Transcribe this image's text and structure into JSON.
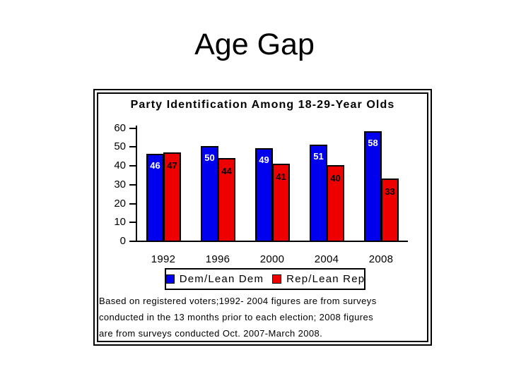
{
  "slide": {
    "title": "Age Gap"
  },
  "chart": {
    "footnote_lines": [
      "Based on registered voters;1992- 2004 figures are from surveys",
      "conducted in the 13 months prior to each election; 2008 figures",
      "are from surveys conducted Oct. 2007-March 2008."
    ]
  },
  "chart_data": {
    "type": "bar",
    "title": "Party Identification Among 18-29-Year Olds",
    "categories": [
      "1992",
      "1996",
      "2000",
      "2004",
      "2008"
    ],
    "series": [
      {
        "name": "Dem/Lean Dem",
        "short": "dem",
        "color": "#0000EE",
        "value_label_color": "#FFFFFF",
        "values": [
          46,
          50,
          49,
          51,
          58
        ]
      },
      {
        "name": "Rep/Lean Rep",
        "short": "rep",
        "color": "#EE0000",
        "value_label_color": "#000000",
        "values": [
          47,
          44,
          41,
          40,
          33
        ]
      }
    ],
    "xlabel": "",
    "ylabel": "",
    "ylim": [
      0,
      60
    ],
    "yticks": [
      0,
      10,
      20,
      30,
      40,
      50,
      60
    ],
    "bar_outline_color": "#000000",
    "legend_position": "bottom",
    "grid": false
  }
}
